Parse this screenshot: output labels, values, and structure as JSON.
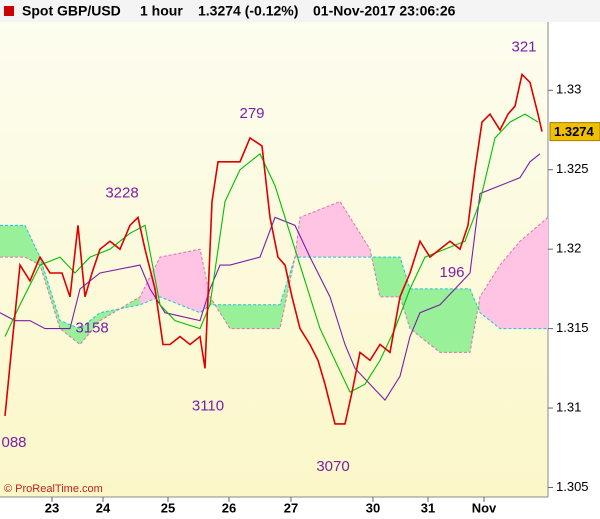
{
  "chart_data": {
    "type": "line",
    "title": [
      "Spot GBP/USD",
      "1 hour",
      "1.3274 (-0.12%)",
      "01-Nov-2017 23:06:26"
    ],
    "footer": "© ProRealTime.com",
    "last_price": 1.3274,
    "xlim": [
      0,
      548
    ],
    "xticks": [
      {
        "value": 52,
        "label": "23"
      },
      {
        "value": 103,
        "label": "24"
      },
      {
        "value": 168,
        "label": "25"
      },
      {
        "value": 229,
        "label": "26"
      },
      {
        "value": 291,
        "label": "27"
      },
      {
        "value": 373,
        "label": "30"
      },
      {
        "value": 428,
        "label": "31"
      },
      {
        "value": 484,
        "label": "Nov"
      }
    ],
    "ylim": [
      1.3044,
      1.3343
    ],
    "yticks": [
      1.305,
      1.31,
      1.315,
      1.32,
      1.325,
      1.33
    ],
    "series": [
      {
        "color": "#7a1fa8",
        "x": [
          0,
          15,
          30,
          45,
          70,
          80,
          100,
          140,
          150,
          165,
          200,
          210,
          220,
          230,
          260,
          275,
          295,
          310,
          330,
          345,
          355,
          370,
          385,
          400,
          410,
          420,
          440,
          470,
          480,
          500,
          520,
          530,
          540
        ],
        "values": [
          1.316,
          1.3155,
          1.3155,
          1.315,
          1.315,
          1.3175,
          1.3185,
          1.319,
          1.3175,
          1.316,
          1.3155,
          1.3175,
          1.319,
          1.319,
          1.3195,
          1.322,
          1.3215,
          1.3195,
          1.317,
          1.314,
          1.3125,
          1.3115,
          1.3105,
          1.312,
          1.3145,
          1.316,
          1.3165,
          1.3185,
          1.3235,
          1.324,
          1.3245,
          1.3255,
          1.326
        ]
      },
      {
        "color": "#00c000",
        "x": [
          5,
          20,
          40,
          60,
          75,
          90,
          110,
          130,
          145,
          160,
          175,
          200,
          210,
          225,
          240,
          260,
          275,
          290,
          305,
          320,
          335,
          350,
          365,
          380,
          395,
          410,
          425,
          445,
          465,
          480,
          495,
          510,
          525,
          538
        ],
        "values": [
          1.3145,
          1.3165,
          1.319,
          1.3195,
          1.3185,
          1.3195,
          1.32,
          1.321,
          1.3215,
          1.3165,
          1.3155,
          1.315,
          1.3165,
          1.323,
          1.325,
          1.326,
          1.324,
          1.321,
          1.318,
          1.315,
          1.313,
          1.311,
          1.3115,
          1.313,
          1.315,
          1.3175,
          1.3195,
          1.32,
          1.3205,
          1.323,
          1.327,
          1.328,
          1.3285,
          1.328
        ]
      },
      {
        "color": "#dd0000",
        "x": [
          5,
          12,
          20,
          30,
          40,
          50,
          62,
          70,
          78,
          85,
          92,
          100,
          110,
          120,
          130,
          138,
          145,
          155,
          163,
          170,
          180,
          190,
          200,
          205,
          212,
          218,
          228,
          240,
          250,
          262,
          270,
          278,
          285,
          292,
          300,
          310,
          318,
          325,
          335,
          345,
          352,
          360,
          370,
          380,
          390,
          400,
          410,
          420,
          430,
          440,
          450,
          460,
          468,
          475,
          482,
          490,
          500,
          508,
          515,
          522,
          530,
          538,
          542
        ],
        "values": [
          1.3095,
          1.314,
          1.319,
          1.318,
          1.3195,
          1.3185,
          1.3185,
          1.317,
          1.3215,
          1.317,
          1.3185,
          1.32,
          1.3205,
          1.32,
          1.3215,
          1.322,
          1.32,
          1.3175,
          1.314,
          1.314,
          1.3145,
          1.314,
          1.3145,
          1.3125,
          1.323,
          1.3255,
          1.3255,
          1.3255,
          1.327,
          1.3265,
          1.322,
          1.3195,
          1.319,
          1.317,
          1.315,
          1.314,
          1.313,
          1.3115,
          1.309,
          1.309,
          1.311,
          1.3135,
          1.313,
          1.314,
          1.3135,
          1.317,
          1.3185,
          1.3205,
          1.3195,
          1.32,
          1.3205,
          1.32,
          1.3215,
          1.325,
          1.328,
          1.3285,
          1.3275,
          1.3285,
          1.329,
          1.331,
          1.3305,
          1.3285,
          1.3274
        ]
      }
    ],
    "cloud": {
      "up_color": "#98f098",
      "down_color": "#ffc4e4",
      "x": [
        0,
        25,
        40,
        60,
        80,
        100,
        140,
        160,
        200,
        210,
        230,
        280,
        295,
        300,
        340,
        370,
        380,
        400,
        410,
        440,
        470,
        480,
        500,
        520,
        548
      ],
      "span_a": [
        1.3215,
        1.3215,
        1.3195,
        1.3155,
        1.315,
        1.316,
        1.3165,
        1.317,
        1.316,
        1.3165,
        1.3165,
        1.3165,
        1.3195,
        1.3195,
        1.3195,
        1.3195,
        1.3195,
        1.3195,
        1.3175,
        1.3175,
        1.3175,
        1.316,
        1.315,
        1.315,
        1.315
      ],
      "span_b": [
        1.3195,
        1.3195,
        1.319,
        1.315,
        1.314,
        1.3155,
        1.317,
        1.3195,
        1.32,
        1.317,
        1.315,
        1.315,
        1.3195,
        1.322,
        1.323,
        1.32,
        1.317,
        1.317,
        1.315,
        1.3135,
        1.3135,
        1.317,
        1.319,
        1.3205,
        1.322
      ]
    },
    "annotations": [
      {
        "text": "3228",
        "x": 122,
        "y": 1.3235
      },
      {
        "text": "3158",
        "x": 92,
        "y": 1.315
      },
      {
        "text": "3110",
        "x": 208,
        "y": 1.3101
      },
      {
        "text": "279",
        "x": 252,
        "y": 1.3285
      },
      {
        "text": "3070",
        "x": 333,
        "y": 1.3063
      },
      {
        "text": "196",
        "x": 452,
        "y": 1.3185
      },
      {
        "text": "321",
        "x": 524,
        "y": 1.3327
      },
      {
        "text": "088",
        "x": 14,
        "y": 1.3078
      }
    ]
  }
}
